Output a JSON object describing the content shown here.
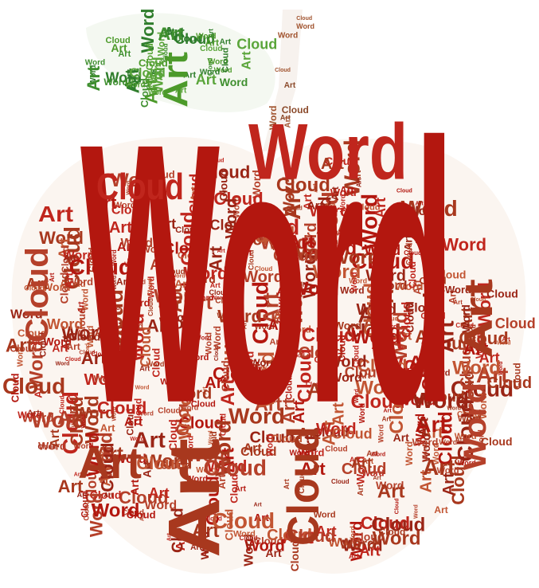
{
  "words": [
    "Word",
    "Cloud",
    "Art"
  ],
  "palette": {
    "leaf_greens": [
      "#3f8f2f",
      "#4c9a2a",
      "#5aa53a",
      "#2f7d2c"
    ],
    "apple_reds": [
      "#b3170f",
      "#c0261d",
      "#a8381e",
      "#b5402a",
      "#c25533",
      "#9a2415"
    ],
    "stem_browns": [
      "#8b4a2b",
      "#a0522d"
    ],
    "shape_fill": "#fbf5f0"
  },
  "hero": {
    "main": "Word",
    "upper": "Word",
    "left_cloud": "Cloud",
    "top_cloud": "Cloud",
    "bottom_art": "Art",
    "bottom_cloud": "Cloud",
    "right_art": "Art",
    "right_word": "Word",
    "leaf_art": "Art",
    "left_art": "Art",
    "mid_art": "Art"
  }
}
